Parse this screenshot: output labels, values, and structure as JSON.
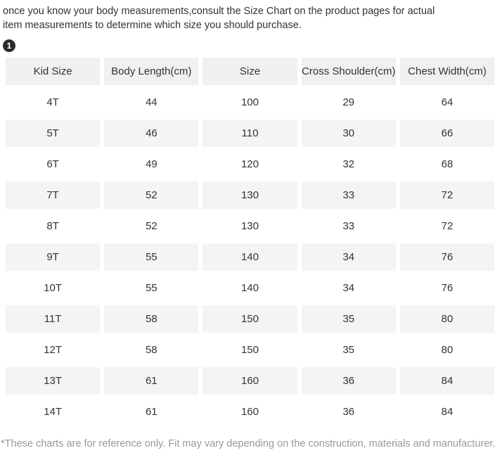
{
  "intro": {
    "text": "once you know your body measurements,consult the Size Chart on the product pages for actual item measurements to determine which size you should purchase."
  },
  "badge": {
    "label": "1"
  },
  "size_chart": {
    "columns": [
      "Kid Size",
      "Body Length(cm)",
      "Size",
      "Cross Shoulder(cm)",
      "Chest Width(cm)"
    ],
    "rows": [
      [
        "4T",
        "44",
        "100",
        "29",
        "64"
      ],
      [
        "5T",
        "46",
        "110",
        "30",
        "66"
      ],
      [
        "6T",
        "49",
        "120",
        "32",
        "68"
      ],
      [
        "7T",
        "52",
        "130",
        "33",
        "72"
      ],
      [
        "8T",
        "52",
        "130",
        "33",
        "72"
      ],
      [
        "9T",
        "55",
        "140",
        "34",
        "76"
      ],
      [
        "10T",
        "55",
        "140",
        "34",
        "76"
      ],
      [
        "11T",
        "58",
        "150",
        "35",
        "80"
      ],
      [
        "12T",
        "58",
        "150",
        "35",
        "80"
      ],
      [
        "13T",
        "61",
        "160",
        "36",
        "84"
      ],
      [
        "14T",
        "61",
        "160",
        "36",
        "84"
      ]
    ]
  },
  "footer": {
    "text": "*These charts are for reference only. Fit may vary depending on the construction, materials and manufacturer."
  },
  "colors": {
    "text": "#333333",
    "footer_text": "#999999",
    "header_bg": "#f0f0f0",
    "row_stripe": "#f4f4f4",
    "badge_bg": "#2b2b2b"
  }
}
